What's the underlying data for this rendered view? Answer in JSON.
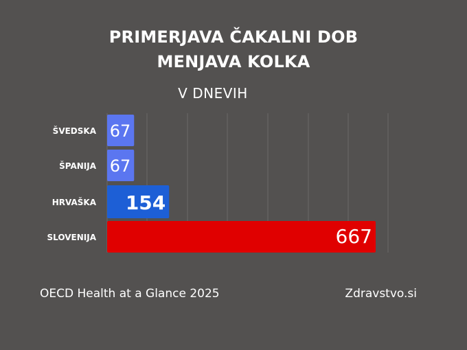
{
  "chart_data": {
    "type": "bar",
    "orientation": "horizontal",
    "title_lines": [
      "PRIMERJAVA ČAKALNI DOB",
      "MENJAVA KOLKA"
    ],
    "subtitle": "V DNEVIH",
    "categories": [
      "ŠVEDSKA",
      "ŠPANIJA",
      "HRVAŠKA",
      "SLOVENIJA"
    ],
    "values": [
      67,
      67,
      154,
      667
    ],
    "colors": [
      "#5b76f0",
      "#5b76f0",
      "#1d5fd6",
      "#e00000"
    ],
    "xlim": [
      0,
      700
    ],
    "grid": true
  },
  "footer": {
    "source": "OECD Health at a Glance 2025",
    "brand": "Zdravstvo.si"
  }
}
